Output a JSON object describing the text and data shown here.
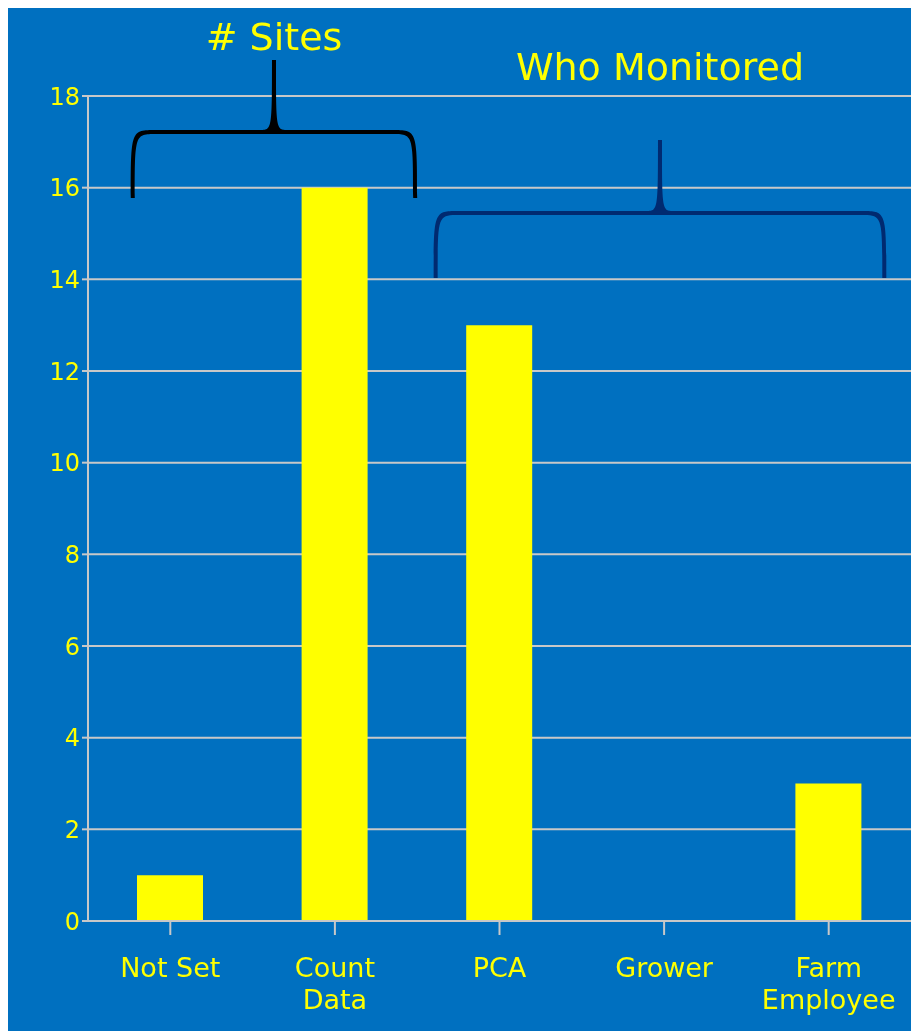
{
  "chart_data": {
    "type": "bar",
    "categories": [
      "Not Set",
      "Count Data",
      "PCA",
      "Grower",
      "Farm Employee"
    ],
    "values": [
      1,
      16,
      13,
      0,
      3
    ],
    "color": "#ffff00",
    "ylim": [
      0,
      18
    ],
    "yticks": [
      0,
      2,
      4,
      6,
      8,
      10,
      12,
      14,
      16,
      18
    ],
    "grid": "y",
    "annotations": [
      "# Sites",
      "Who Monitored"
    ]
  }
}
